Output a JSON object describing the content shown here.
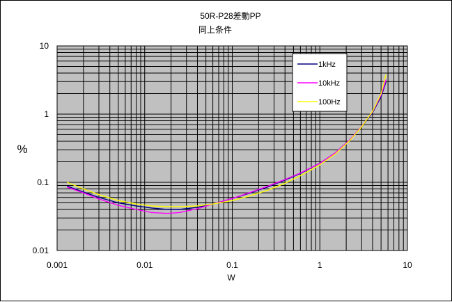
{
  "chart_data": {
    "type": "line",
    "title": "50R-P28差動PP",
    "subtitle": "同上条件",
    "xlabel": "W",
    "ylabel": "%",
    "x_scale": "log",
    "y_scale": "log",
    "xlim": [
      0.001,
      10
    ],
    "ylim": [
      0.01,
      10
    ],
    "x_ticks": [
      "0.001",
      "0.01",
      "0.1",
      "1",
      "10"
    ],
    "y_ticks": [
      "0.01",
      "0.1",
      "1",
      "10"
    ],
    "grid": true,
    "plot_background": "#c0c0c0",
    "legend_position": "top-right",
    "series": [
      {
        "name": "1kHz",
        "color": "#000080",
        "points": [
          [
            0.0013,
            0.088
          ],
          [
            0.002,
            0.072
          ],
          [
            0.003,
            0.06
          ],
          [
            0.005,
            0.05
          ],
          [
            0.008,
            0.045
          ],
          [
            0.012,
            0.042
          ],
          [
            0.018,
            0.04
          ],
          [
            0.025,
            0.04
          ],
          [
            0.04,
            0.043
          ],
          [
            0.06,
            0.048
          ],
          [
            0.1,
            0.058
          ],
          [
            0.15,
            0.068
          ],
          [
            0.25,
            0.085
          ],
          [
            0.4,
            0.108
          ],
          [
            0.6,
            0.135
          ],
          [
            1.0,
            0.19
          ],
          [
            1.5,
            0.27
          ],
          [
            2.2,
            0.42
          ],
          [
            3.0,
            0.65
          ],
          [
            4.0,
            1.05
          ],
          [
            5.0,
            1.8
          ],
          [
            5.7,
            3.0
          ]
        ]
      },
      {
        "name": "10kHz",
        "color": "#ff00ff",
        "points": [
          [
            0.0013,
            0.085
          ],
          [
            0.002,
            0.07
          ],
          [
            0.003,
            0.057
          ],
          [
            0.005,
            0.046
          ],
          [
            0.008,
            0.04
          ],
          [
            0.012,
            0.036
          ],
          [
            0.018,
            0.035
          ],
          [
            0.025,
            0.036
          ],
          [
            0.04,
            0.041
          ],
          [
            0.06,
            0.048
          ],
          [
            0.1,
            0.058
          ],
          [
            0.15,
            0.069
          ],
          [
            0.25,
            0.087
          ],
          [
            0.4,
            0.11
          ],
          [
            0.6,
            0.137
          ],
          [
            1.0,
            0.19
          ],
          [
            1.5,
            0.27
          ],
          [
            2.2,
            0.42
          ],
          [
            3.0,
            0.66
          ],
          [
            4.0,
            1.08
          ],
          [
            5.0,
            1.9
          ],
          [
            5.7,
            3.2
          ]
        ]
      },
      {
        "name": "100Hz",
        "color": "#ffff00",
        "points": [
          [
            0.0013,
            0.1
          ],
          [
            0.002,
            0.08
          ],
          [
            0.003,
            0.066
          ],
          [
            0.005,
            0.054
          ],
          [
            0.008,
            0.048
          ],
          [
            0.012,
            0.045
          ],
          [
            0.018,
            0.044
          ],
          [
            0.025,
            0.044
          ],
          [
            0.04,
            0.045
          ],
          [
            0.06,
            0.048
          ],
          [
            0.1,
            0.054
          ],
          [
            0.15,
            0.062
          ],
          [
            0.25,
            0.076
          ],
          [
            0.4,
            0.097
          ],
          [
            0.6,
            0.125
          ],
          [
            1.0,
            0.18
          ],
          [
            1.5,
            0.26
          ],
          [
            2.2,
            0.41
          ],
          [
            3.0,
            0.65
          ],
          [
            4.0,
            1.1
          ],
          [
            5.0,
            2.0
          ],
          [
            5.7,
            3.8
          ]
        ]
      }
    ]
  }
}
